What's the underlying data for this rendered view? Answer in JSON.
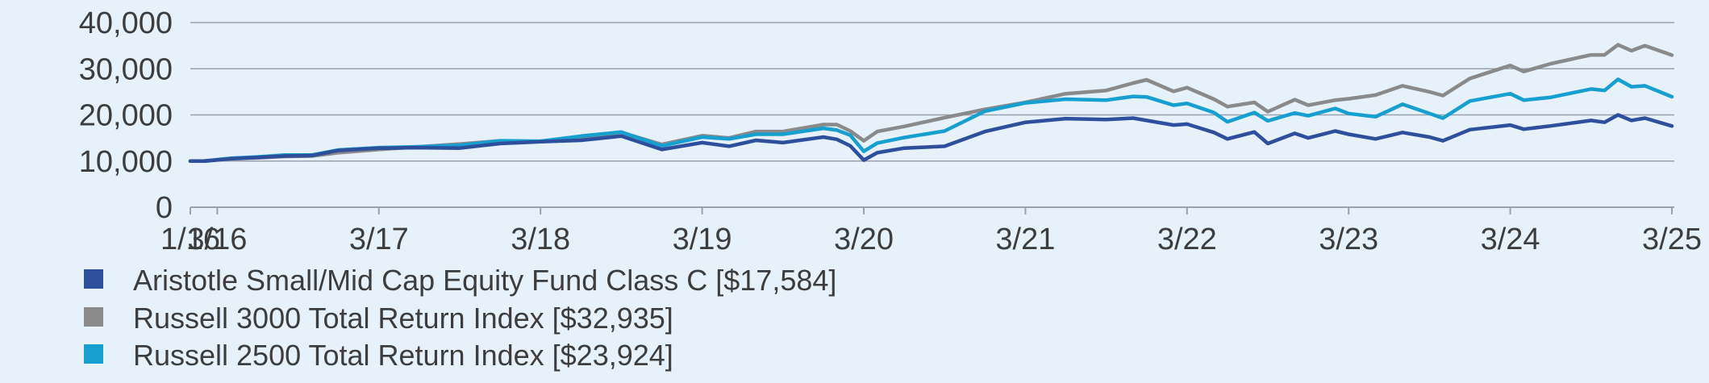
{
  "chart_data": {
    "type": "line",
    "title": "",
    "xlabel": "",
    "ylabel": "",
    "ylim": [
      0,
      40000
    ],
    "grid": true,
    "legend_position": "bottom-left",
    "y_ticks": [
      0,
      10000,
      20000,
      30000,
      40000
    ],
    "y_tick_labels": [
      "0",
      "10,000",
      "20,000",
      "30,000",
      "40,000"
    ],
    "x_ticks": [
      {
        "label": "1/16",
        "x": "2016-01"
      },
      {
        "label": "3/16",
        "x": "2016-03"
      },
      {
        "label": "3/17",
        "x": "2017-03"
      },
      {
        "label": "3/18",
        "x": "2018-03"
      },
      {
        "label": "3/19",
        "x": "2019-03"
      },
      {
        "label": "3/20",
        "x": "2020-03"
      },
      {
        "label": "3/21",
        "x": "2021-03"
      },
      {
        "label": "3/22",
        "x": "2022-03"
      },
      {
        "label": "3/23",
        "x": "2023-03"
      },
      {
        "label": "3/24",
        "x": "2024-03"
      },
      {
        "label": "3/25",
        "x": "2025-03"
      }
    ],
    "series": [
      {
        "name": "Aristotle Small/Mid Cap Equity Fund Class C [$17,584]",
        "color": "#2e4f9c",
        "points": [
          [
            "2016-01",
            10000
          ],
          [
            "2016-02",
            10000
          ],
          [
            "2016-04",
            10500
          ],
          [
            "2016-06",
            10800
          ],
          [
            "2016-08",
            11100
          ],
          [
            "2016-10",
            11200
          ],
          [
            "2016-12",
            12300
          ],
          [
            "2017-03",
            12800
          ],
          [
            "2017-06",
            12900
          ],
          [
            "2017-09",
            12800
          ],
          [
            "2017-12",
            13800
          ],
          [
            "2018-03",
            14200
          ],
          [
            "2018-06",
            14500
          ],
          [
            "2018-09",
            15400
          ],
          [
            "2018-12",
            12500
          ],
          [
            "2019-03",
            14000
          ],
          [
            "2019-05",
            13200
          ],
          [
            "2019-07",
            14500
          ],
          [
            "2019-09",
            14000
          ],
          [
            "2019-12",
            15200
          ],
          [
            "2020-01",
            14700
          ],
          [
            "2020-02",
            13300
          ],
          [
            "2020-03",
            10200
          ],
          [
            "2020-04",
            11800
          ],
          [
            "2020-06",
            12800
          ],
          [
            "2020-09",
            13200
          ],
          [
            "2020-12",
            16400
          ],
          [
            "2021-03",
            18400
          ],
          [
            "2021-06",
            19200
          ],
          [
            "2021-09",
            19000
          ],
          [
            "2021-11",
            19300
          ],
          [
            "2021-12",
            18800
          ],
          [
            "2022-02",
            17800
          ],
          [
            "2022-03",
            18000
          ],
          [
            "2022-05",
            16200
          ],
          [
            "2022-06",
            14800
          ],
          [
            "2022-08",
            16300
          ],
          [
            "2022-09",
            13800
          ],
          [
            "2022-11",
            16000
          ],
          [
            "2022-12",
            15000
          ],
          [
            "2023-02",
            16500
          ],
          [
            "2023-03",
            15800
          ],
          [
            "2023-05",
            14800
          ],
          [
            "2023-07",
            16200
          ],
          [
            "2023-09",
            15200
          ],
          [
            "2023-10",
            14400
          ],
          [
            "2023-12",
            16800
          ],
          [
            "2024-03",
            17800
          ],
          [
            "2024-04",
            16900
          ],
          [
            "2024-06",
            17600
          ],
          [
            "2024-09",
            18800
          ],
          [
            "2024-10",
            18400
          ],
          [
            "2024-11",
            20000
          ],
          [
            "2024-12",
            18800
          ],
          [
            "2025-01",
            19300
          ],
          [
            "2025-03",
            17584
          ]
        ]
      },
      {
        "name": "Russell 3000 Total Return Index [$32,935]",
        "color": "#8a8a8a",
        "points": [
          [
            "2016-01",
            10000
          ],
          [
            "2016-02",
            10000
          ],
          [
            "2016-04",
            10500
          ],
          [
            "2016-06",
            10700
          ],
          [
            "2016-08",
            11000
          ],
          [
            "2016-10",
            11100
          ],
          [
            "2016-12",
            11800
          ],
          [
            "2017-03",
            12500
          ],
          [
            "2017-06",
            13100
          ],
          [
            "2017-09",
            13700
          ],
          [
            "2017-12",
            14400
          ],
          [
            "2018-03",
            14200
          ],
          [
            "2018-06",
            14900
          ],
          [
            "2018-09",
            16200
          ],
          [
            "2018-12",
            13600
          ],
          [
            "2019-03",
            15500
          ],
          [
            "2019-05",
            15000
          ],
          [
            "2019-07",
            16400
          ],
          [
            "2019-09",
            16400
          ],
          [
            "2019-12",
            17900
          ],
          [
            "2020-01",
            17900
          ],
          [
            "2020-02",
            16500
          ],
          [
            "2020-03",
            14400
          ],
          [
            "2020-04",
            16400
          ],
          [
            "2020-06",
            17500
          ],
          [
            "2020-09",
            19400
          ],
          [
            "2020-12",
            21200
          ],
          [
            "2021-03",
            22700
          ],
          [
            "2021-06",
            24600
          ],
          [
            "2021-09",
            25300
          ],
          [
            "2021-11",
            26900
          ],
          [
            "2021-12",
            27600
          ],
          [
            "2022-02",
            25100
          ],
          [
            "2022-03",
            25900
          ],
          [
            "2022-05",
            23400
          ],
          [
            "2022-06",
            21800
          ],
          [
            "2022-08",
            22700
          ],
          [
            "2022-09",
            20700
          ],
          [
            "2022-11",
            23300
          ],
          [
            "2022-12",
            22100
          ],
          [
            "2023-02",
            23200
          ],
          [
            "2023-03",
            23500
          ],
          [
            "2023-05",
            24300
          ],
          [
            "2023-07",
            26300
          ],
          [
            "2023-09",
            25000
          ],
          [
            "2023-10",
            24200
          ],
          [
            "2023-12",
            27900
          ],
          [
            "2024-03",
            30700
          ],
          [
            "2024-04",
            29400
          ],
          [
            "2024-06",
            31100
          ],
          [
            "2024-09",
            33000
          ],
          [
            "2024-10",
            33000
          ],
          [
            "2024-11",
            35200
          ],
          [
            "2024-12",
            33900
          ],
          [
            "2025-01",
            35000
          ],
          [
            "2025-03",
            32935
          ]
        ]
      },
      {
        "name": "Russell 2500 Total Return Index [$23,924]",
        "color": "#179fd0",
        "points": [
          [
            "2016-01",
            10000
          ],
          [
            "2016-02",
            10000
          ],
          [
            "2016-04",
            10600
          ],
          [
            "2016-06",
            10900
          ],
          [
            "2016-08",
            11300
          ],
          [
            "2016-10",
            11300
          ],
          [
            "2016-12",
            12400
          ],
          [
            "2017-03",
            12900
          ],
          [
            "2017-06",
            13100
          ],
          [
            "2017-09",
            13400
          ],
          [
            "2017-12",
            14400
          ],
          [
            "2018-03",
            14300
          ],
          [
            "2018-06",
            15400
          ],
          [
            "2018-09",
            16300
          ],
          [
            "2018-12",
            13300
          ],
          [
            "2019-03",
            15200
          ],
          [
            "2019-05",
            14800
          ],
          [
            "2019-07",
            15800
          ],
          [
            "2019-09",
            15800
          ],
          [
            "2019-12",
            17100
          ],
          [
            "2020-01",
            16700
          ],
          [
            "2020-02",
            15600
          ],
          [
            "2020-03",
            12100
          ],
          [
            "2020-04",
            13900
          ],
          [
            "2020-06",
            15100
          ],
          [
            "2020-09",
            16500
          ],
          [
            "2020-12",
            20800
          ],
          [
            "2021-03",
            22600
          ],
          [
            "2021-06",
            23400
          ],
          [
            "2021-09",
            23200
          ],
          [
            "2021-11",
            24000
          ],
          [
            "2021-12",
            23900
          ],
          [
            "2022-02",
            22100
          ],
          [
            "2022-03",
            22500
          ],
          [
            "2022-05",
            20500
          ],
          [
            "2022-06",
            18500
          ],
          [
            "2022-08",
            20500
          ],
          [
            "2022-09",
            18700
          ],
          [
            "2022-11",
            20400
          ],
          [
            "2022-12",
            19800
          ],
          [
            "2023-02",
            21400
          ],
          [
            "2023-03",
            20300
          ],
          [
            "2023-05",
            19600
          ],
          [
            "2023-07",
            22300
          ],
          [
            "2023-09",
            20300
          ],
          [
            "2023-10",
            19300
          ],
          [
            "2023-12",
            23000
          ],
          [
            "2024-03",
            24600
          ],
          [
            "2024-04",
            23200
          ],
          [
            "2024-06",
            23800
          ],
          [
            "2024-09",
            25600
          ],
          [
            "2024-10",
            25300
          ],
          [
            "2024-11",
            27700
          ],
          [
            "2024-12",
            26100
          ],
          [
            "2025-01",
            26300
          ],
          [
            "2025-03",
            23924
          ]
        ]
      }
    ]
  }
}
